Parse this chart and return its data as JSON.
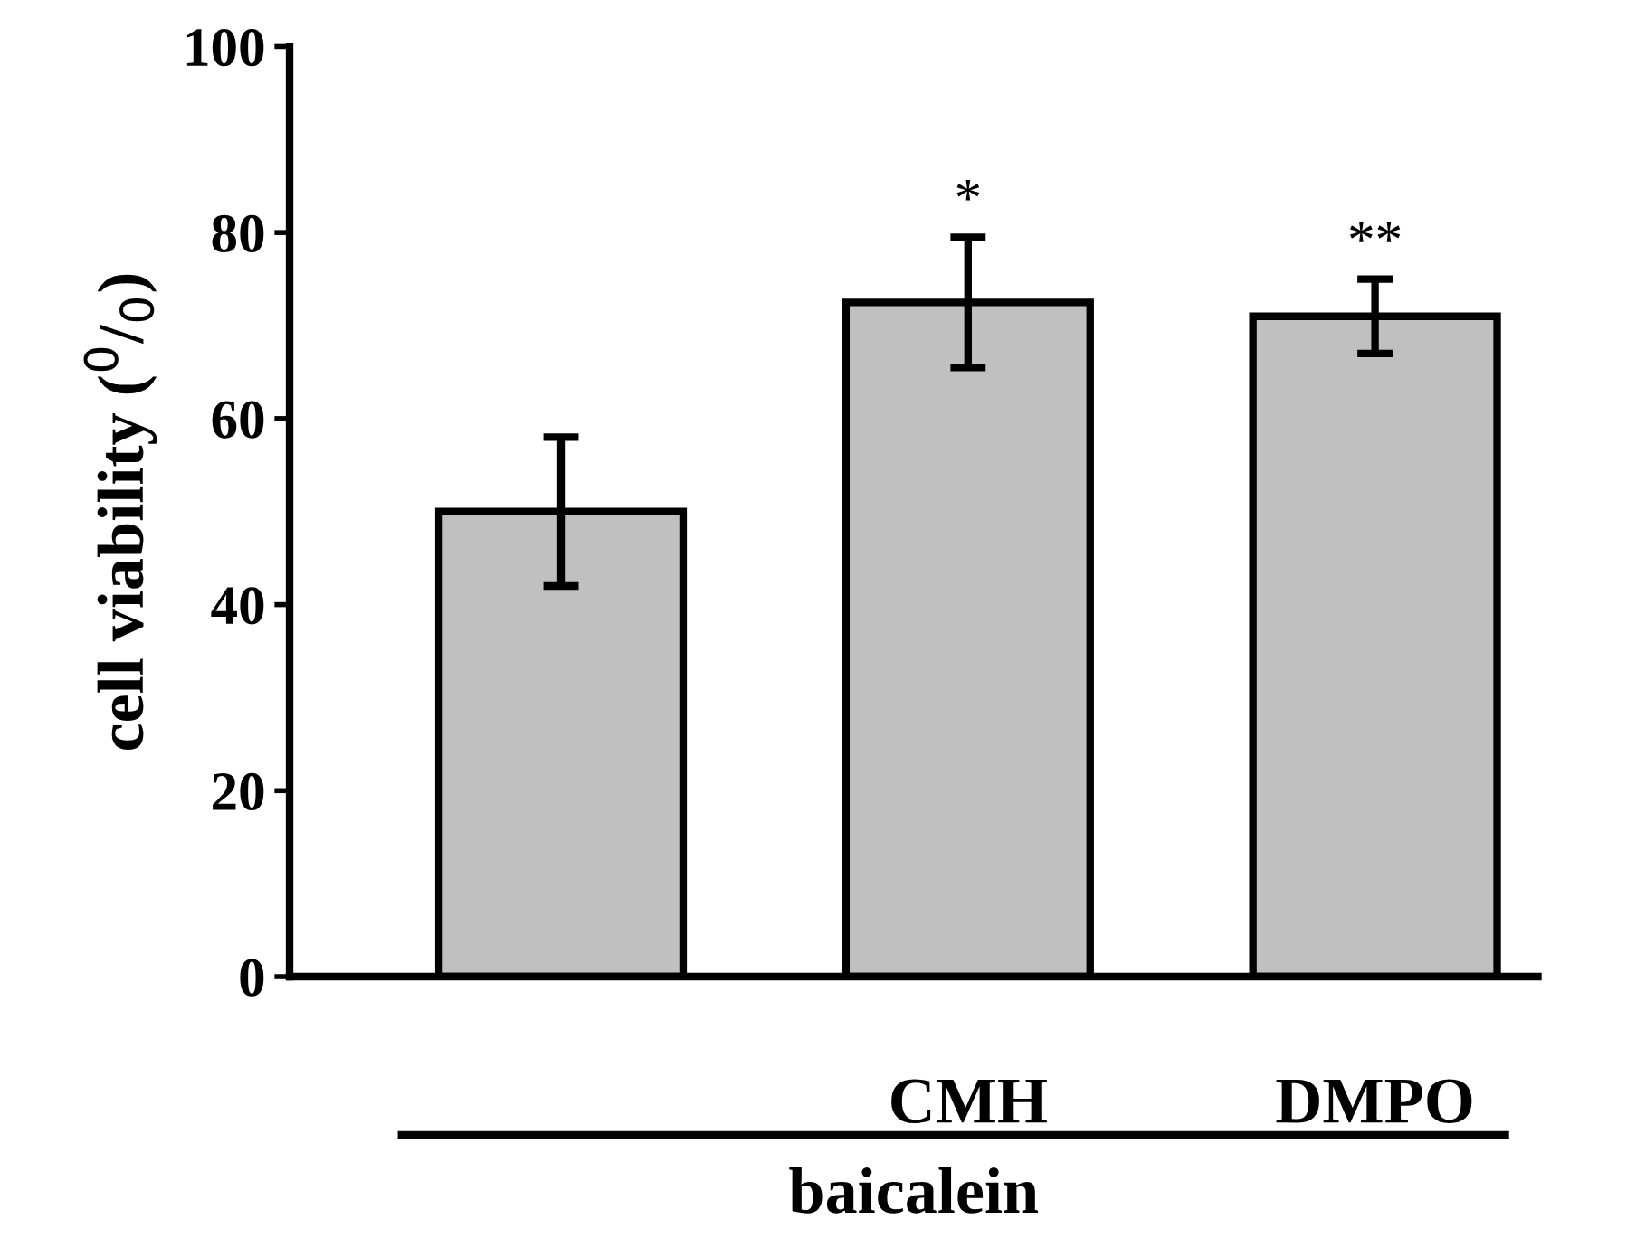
{
  "chart_data": {
    "type": "bar",
    "categories": [
      null,
      "CMH",
      "DMPO"
    ],
    "values": [
      50,
      72.5,
      71
    ],
    "errors": [
      8,
      7,
      4
    ],
    "color": "#c0c0c0",
    "xlabel": "baicalein",
    "ylabel": "cell viability ($^{0}$/$_{0}$)",
    "ylim": [
      0,
      100
    ],
    "yticks": [
      0,
      20,
      40,
      60,
      80,
      100
    ],
    "annotations": [
      {
        "text": "*",
        "x": "CMH",
        "y": 79.5
      },
      {
        "text": "**",
        "x": "DMPO",
        "y": 75
      }
    ],
    "grid": false,
    "legend": false
  }
}
